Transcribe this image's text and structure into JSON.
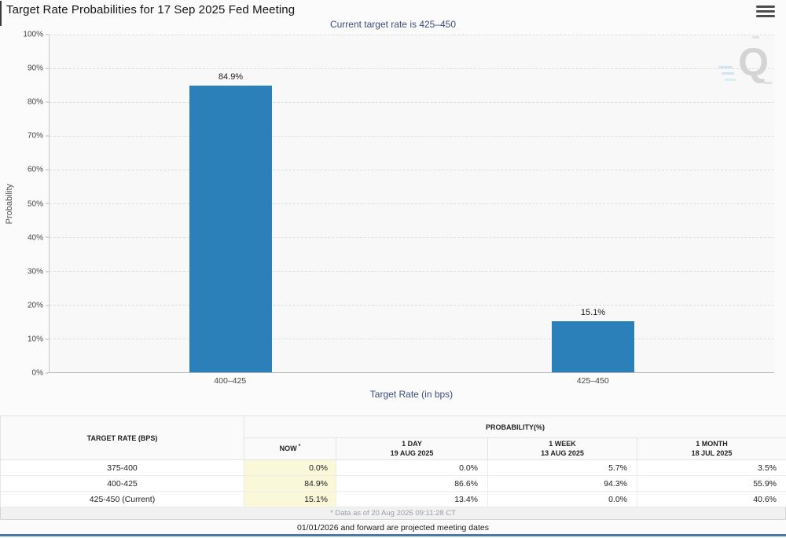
{
  "header": {
    "title": "Target Rate Probabilities for 17 Sep 2025 Fed Meeting",
    "subtitle": "Current target rate is 425–450",
    "menu_icon": "hamburger-icon"
  },
  "chart_data": {
    "type": "bar",
    "title": "Current target rate is 425–450",
    "categories": [
      "400–425",
      "425–450"
    ],
    "values": [
      84.9,
      15.1
    ],
    "bar_labels": [
      "84.9%",
      "15.1%"
    ],
    "xlabel": "Target Rate (in bps)",
    "ylabel": "Probability",
    "ylim": [
      0,
      100
    ],
    "yticks": [
      "100%",
      "90%",
      "80%",
      "70%",
      "60%",
      "50%",
      "40%",
      "30%",
      "20%",
      "10%",
      "0%"
    ],
    "grid": "horizontal-dashed",
    "legend": "none",
    "bar_color": "#2c80ba"
  },
  "watermark": {
    "letter": "Q"
  },
  "table": {
    "col1_header": "TARGET RATE (BPS)",
    "group_header": "PROBABILITY(%)",
    "columns": [
      {
        "label": "NOW",
        "sup": "*",
        "date": ""
      },
      {
        "label": "1 DAY",
        "sup": "",
        "date": "19 AUG 2025"
      },
      {
        "label": "1 WEEK",
        "sup": "",
        "date": "13 AUG 2025"
      },
      {
        "label": "1 MONTH",
        "sup": "",
        "date": "18 JUL 2025"
      }
    ],
    "rows": [
      [
        "375-400",
        "0.0%",
        "0.0%",
        "5.7%",
        "3.5%"
      ],
      [
        "400-425",
        "84.9%",
        "86.6%",
        "94.3%",
        "55.9%"
      ],
      [
        "425-450 (Current)",
        "15.1%",
        "13.4%",
        "0.0%",
        "40.6%"
      ]
    ],
    "footnote": "* Data as of 20 Aug 2025 09:11:28 CT"
  },
  "footer": {
    "note": "01/01/2026 and forward are projected meeting dates"
  },
  "colors": {
    "bar": "#2c80ba",
    "accent_navy": "#3d4c7c",
    "now_column_bg": "#f9f8d9",
    "bottom_line": "#4d79a7"
  }
}
